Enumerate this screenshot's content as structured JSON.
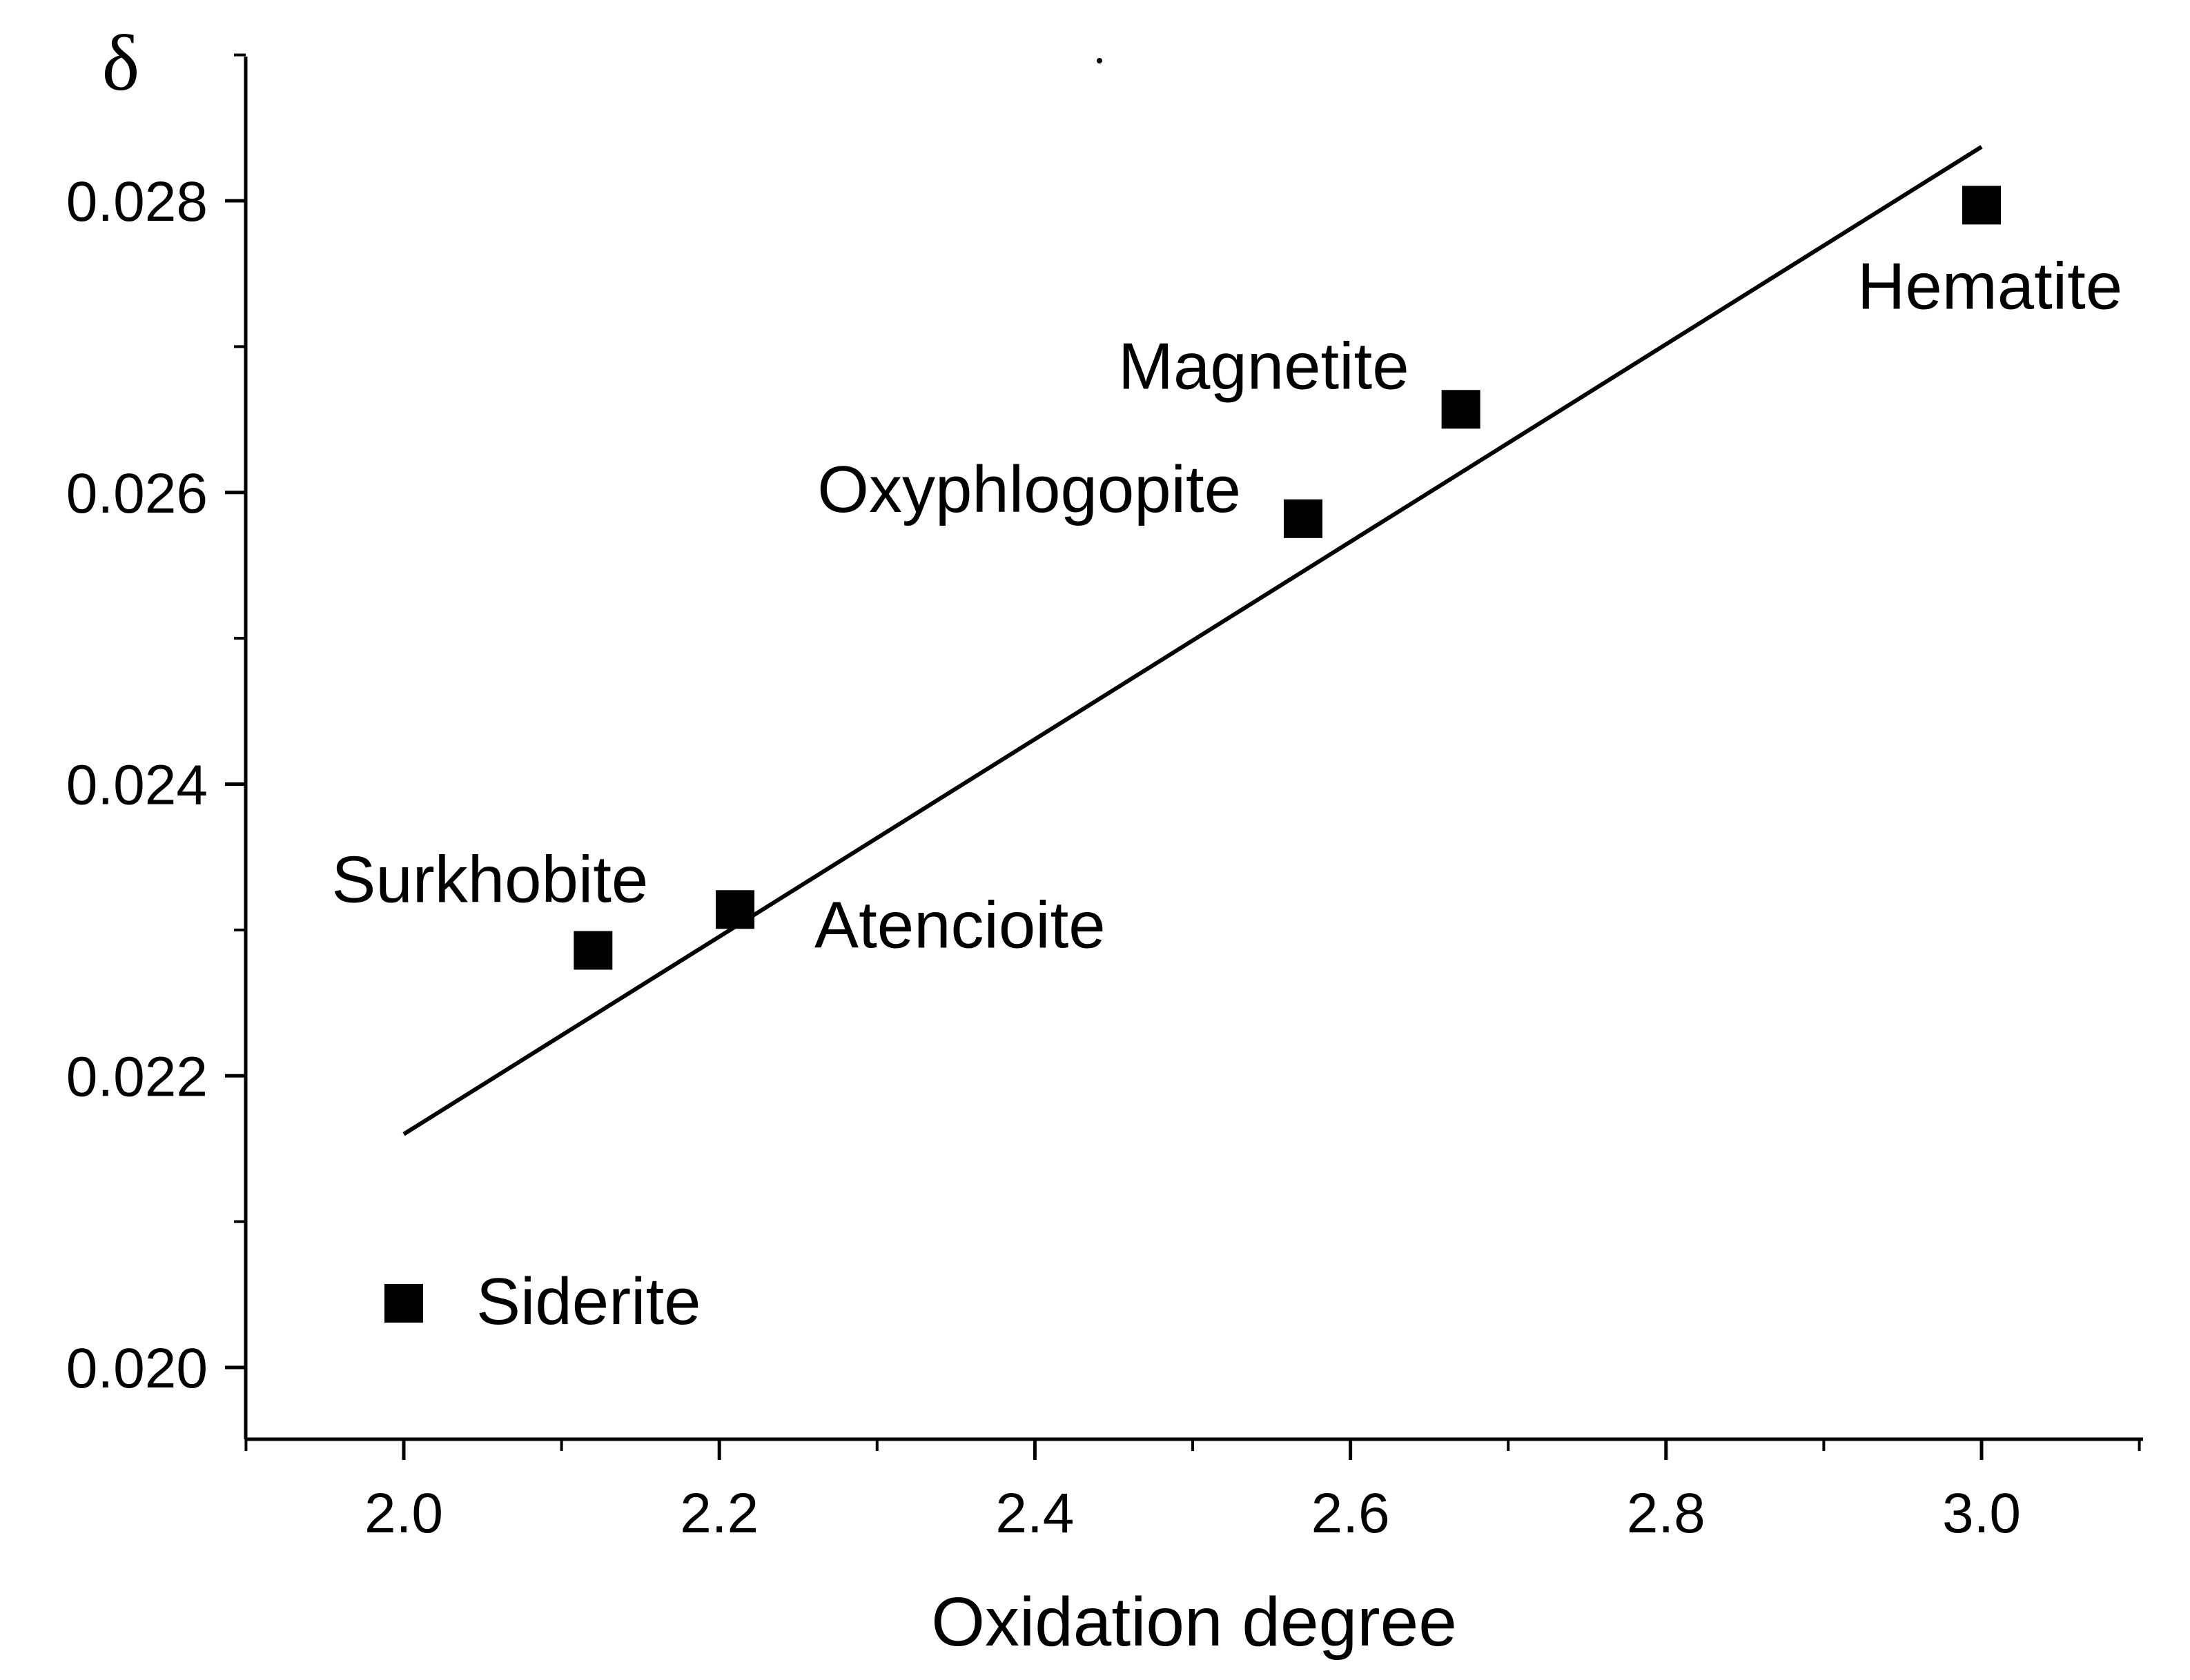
{
  "chart_data": {
    "type": "scatter",
    "title": "",
    "xlabel": "Oxidation degree",
    "ylabel": "δ",
    "xlim": [
      1.9,
      3.1
    ],
    "ylim": [
      0.0195,
      0.029
    ],
    "xticks": [
      2.0,
      2.2,
      2.4,
      2.6,
      2.8,
      3.0
    ],
    "xtick_labels": [
      "2.0",
      "2.2",
      "2.4",
      "2.6",
      "2.8",
      "3.0"
    ],
    "yticks": [
      0.02,
      0.022,
      0.024,
      0.026,
      0.028
    ],
    "ytick_labels": [
      "0.020",
      "0.022",
      "0.024",
      "0.026",
      "0.028"
    ],
    "grid": false,
    "points": [
      {
        "label": "Siderite",
        "x": 2.0,
        "y": 0.02044
      },
      {
        "label": "Surkhobite",
        "x": 2.12,
        "y": 0.02286
      },
      {
        "label": "Atencioite",
        "x": 2.21,
        "y": 0.02314
      },
      {
        "label": "Oxyphlogopite",
        "x": 2.57,
        "y": 0.02582
      },
      {
        "label": "Magnetite",
        "x": 2.67,
        "y": 0.02657
      },
      {
        "label": "Hematite",
        "x": 3.0,
        "y": 0.02797
      }
    ],
    "fit_line": {
      "x1": 2.0,
      "y1": 0.0216,
      "x2": 3.0,
      "y2": 0.02837
    },
    "marker_color": "#000000",
    "line_color": "#000000"
  }
}
